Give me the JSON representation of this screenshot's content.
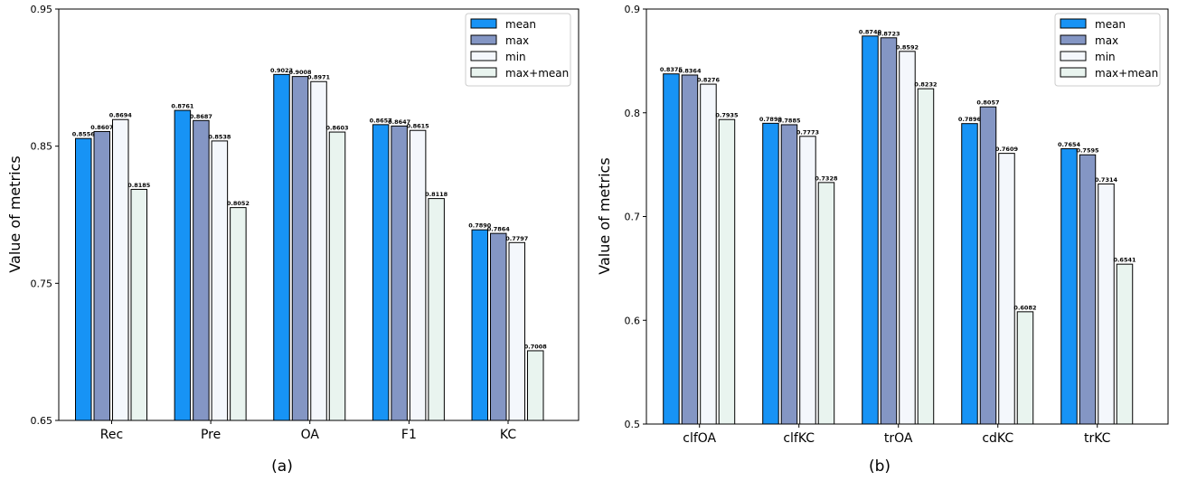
{
  "colors": {
    "mean": "#1793f5",
    "max": "#8496c4",
    "min": "#f4f7fc",
    "max+mean": "#e9f4ef"
  },
  "chart_data": [
    {
      "type": "bar",
      "panel_label": "(a)",
      "ylabel": "Value of metrics",
      "ylim": [
        0.65,
        0.95
      ],
      "yticks": [
        "0.65",
        "0.75",
        "0.85",
        "0.95"
      ],
      "categories": [
        "Rec",
        "Pre",
        "OA",
        "F1",
        "KC"
      ],
      "legend": {
        "position": "top-right"
      },
      "series": [
        {
          "name": "mean",
          "values": [
            0.8556,
            0.8761,
            0.9023,
            0.8657,
            0.789
          ],
          "labels": [
            "0.8556",
            "0.8761",
            "0.9023",
            "0.8657",
            "0.7890"
          ]
        },
        {
          "name": "max",
          "values": [
            0.8607,
            0.8687,
            0.9008,
            0.8647,
            0.7864
          ],
          "labels": [
            "0.8607",
            "0.8687",
            "0.9008",
            "0.8647",
            "0.7864"
          ]
        },
        {
          "name": "min",
          "values": [
            0.8694,
            0.8538,
            0.8971,
            0.8615,
            0.7797
          ],
          "labels": [
            "0.8694",
            "0.8538",
            "0.8971",
            "0.8615",
            "0.7797"
          ]
        },
        {
          "name": "max+mean",
          "values": [
            0.8185,
            0.8052,
            0.8603,
            0.8118,
            0.7008
          ],
          "labels": [
            "0.8185",
            "0.8052",
            "0.8603",
            "0.8118",
            "0.7008"
          ]
        }
      ]
    },
    {
      "type": "bar",
      "panel_label": "(b)",
      "ylabel": "Value of metrics",
      "ylim": [
        0.5,
        0.9
      ],
      "yticks": [
        "0.5",
        "0.6",
        "0.7",
        "0.8",
        "0.9"
      ],
      "categories": [
        "clfOA",
        "clfKC",
        "trOA",
        "cdKC",
        "trKC"
      ],
      "legend": {
        "position": "top-right"
      },
      "series": [
        {
          "name": "mean",
          "values": [
            0.8375,
            0.7899,
            0.874,
            0.7896,
            0.7654
          ],
          "labels": [
            "0.8375",
            "0.7899",
            "0.8740",
            "0.7896",
            "0.7654"
          ]
        },
        {
          "name": "max",
          "values": [
            0.8364,
            0.7885,
            0.8723,
            0.8057,
            0.7595
          ],
          "labels": [
            "0.8364",
            "0.7885",
            "0.8723",
            "0.8057",
            "0.7595"
          ]
        },
        {
          "name": "min",
          "values": [
            0.8276,
            0.7773,
            0.8592,
            0.7609,
            0.7314
          ],
          "labels": [
            "0.8276",
            "0.7773",
            "0.8592",
            "0.7609",
            "0.7314"
          ]
        },
        {
          "name": "max+mean",
          "values": [
            0.7935,
            0.7328,
            0.8232,
            0.6082,
            0.6541
          ],
          "labels": [
            "0.7935",
            "0.7328",
            "0.8232",
            "0.6082",
            "0.6541"
          ]
        }
      ]
    }
  ]
}
